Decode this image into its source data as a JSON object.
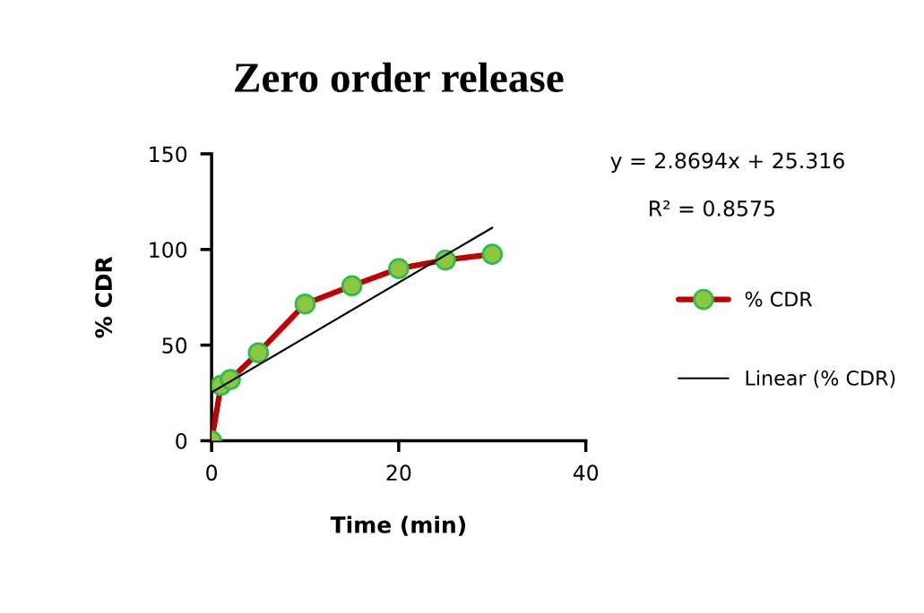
{
  "chart_data": {
    "type": "line",
    "title": "Zero order release",
    "xlabel": "Time (min)",
    "ylabel": "% CDR",
    "x": [
      0,
      1,
      2,
      5,
      10,
      15,
      20,
      25,
      30
    ],
    "series": [
      {
        "name": "% CDR",
        "color": "#c00000",
        "values": [
          0,
          29,
          32,
          46,
          71.5,
          81,
          90,
          94.5,
          97.5
        ],
        "marker": "circle"
      },
      {
        "name": "Linear (% CDR)",
        "type": "line",
        "color": "#000000",
        "x": [
          0,
          30
        ],
        "values": [
          25.3,
          111.4
        ],
        "marker": "none"
      }
    ],
    "xlim": [
      0,
      40
    ],
    "xticks": [
      0,
      20,
      40
    ],
    "ylim": [
      0,
      150
    ],
    "yticks": [
      0,
      50,
      100,
      150
    ],
    "grid": false,
    "legend": "right",
    "line_style": "solid",
    "annotations": [
      "y = 2.8694x + 25.316",
      "R² = 0.8575"
    ]
  }
}
